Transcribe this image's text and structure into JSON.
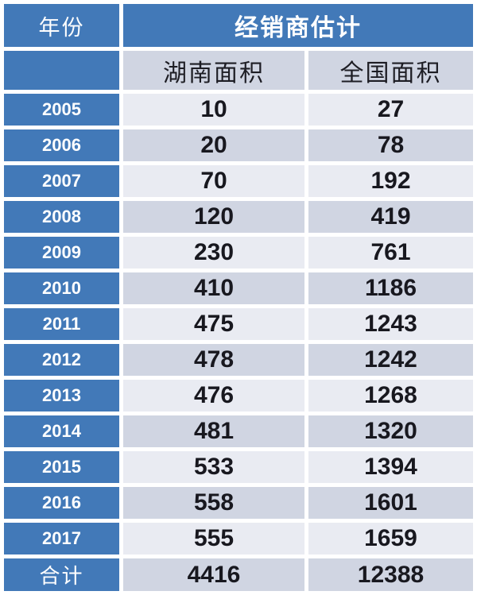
{
  "table": {
    "header": {
      "year_col": "年份",
      "group": "经销商估计"
    },
    "subheader": {
      "hunan": "湖南面积",
      "national": "全国面积"
    },
    "rows": [
      {
        "year": "2005",
        "hunan": "10",
        "national": "27"
      },
      {
        "year": "2006",
        "hunan": "20",
        "national": "78"
      },
      {
        "year": "2007",
        "hunan": "70",
        "national": "192"
      },
      {
        "year": "2008",
        "hunan": "120",
        "national": "419"
      },
      {
        "year": "2009",
        "hunan": "230",
        "national": "761"
      },
      {
        "year": "2010",
        "hunan": "410",
        "national": "1186"
      },
      {
        "year": "2011",
        "hunan": "475",
        "national": "1243"
      },
      {
        "year": "2012",
        "hunan": "478",
        "national": "1242"
      },
      {
        "year": "2013",
        "hunan": "476",
        "national": "1268"
      },
      {
        "year": "2014",
        "hunan": "481",
        "national": "1320"
      },
      {
        "year": "2015",
        "hunan": "533",
        "national": "1394"
      },
      {
        "year": "2016",
        "hunan": "558",
        "national": "1601"
      },
      {
        "year": "2017",
        "hunan": "555",
        "national": "1659"
      }
    ],
    "total": {
      "label": "合计",
      "hunan": "4416",
      "national": "12388"
    }
  },
  "colors": {
    "header_blue": "#4279b8",
    "row_light": "#e9ebf2",
    "row_dark": "#d0d5e2",
    "grid_white": "#ffffff",
    "text_dark": "#18181f",
    "text_white": "#ffffff"
  },
  "chart_data": {
    "type": "table",
    "title": "经销商估计",
    "row_header_label": "年份",
    "categories": [
      "2005",
      "2006",
      "2007",
      "2008",
      "2009",
      "2010",
      "2011",
      "2012",
      "2013",
      "2014",
      "2015",
      "2016",
      "2017",
      "合计"
    ],
    "series": [
      {
        "name": "湖南面积",
        "values": [
          10,
          20,
          70,
          120,
          230,
          410,
          475,
          478,
          476,
          481,
          533,
          558,
          555,
          4416
        ]
      },
      {
        "name": "全国面积",
        "values": [
          27,
          78,
          192,
          419,
          761,
          1186,
          1243,
          1242,
          1268,
          1320,
          1394,
          1601,
          1659,
          12388
        ]
      }
    ]
  }
}
